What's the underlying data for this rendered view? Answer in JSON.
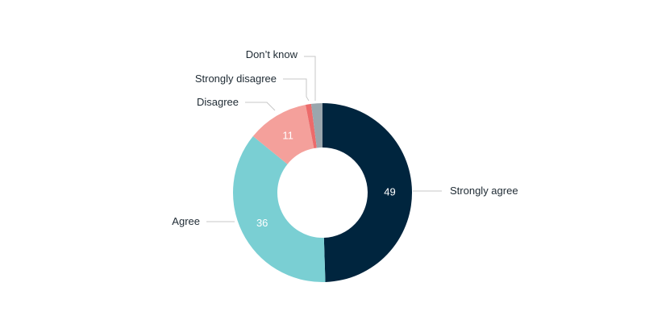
{
  "chart_data": {
    "type": "pie",
    "donut": true,
    "categories": [
      "Strongly agree",
      "Agree",
      "Disagree",
      "Strongly disagree",
      "Don’t know"
    ],
    "values": [
      49,
      36,
      11,
      1,
      2
    ],
    "value_labels": [
      "49",
      "36",
      "11",
      "",
      ""
    ],
    "colors": [
      "#00253e",
      "#7acfd3",
      "#f4a09b",
      "#ec6b6b",
      "#9aa6ad"
    ],
    "title": "",
    "legend": "none"
  }
}
